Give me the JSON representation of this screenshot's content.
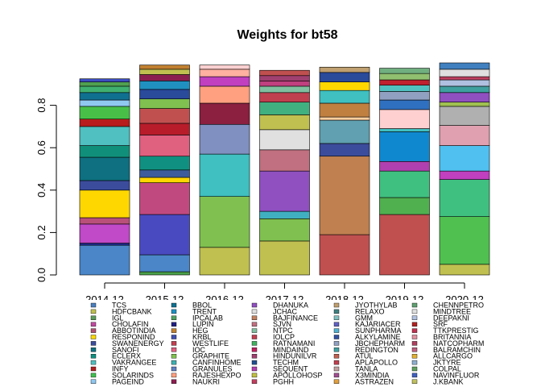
{
  "chart_data": {
    "type": "bar",
    "stacked": true,
    "title": "Weights for bt58",
    "categories": [
      "2014-12",
      "2015-12",
      "2016-12",
      "2017-12",
      "2018-12",
      "2019-12",
      "2020-12"
    ],
    "ylim": [
      0,
      1
    ],
    "yticks": [
      "0.0",
      "0.2",
      "0.4",
      "0.6",
      "0.8"
    ],
    "grid": false,
    "legend_position": "bottom",
    "legend": [
      {
        "name": "TCS",
        "color": "#4a7fbf"
      },
      {
        "name": "HDFCBANK",
        "color": "#c0c050"
      },
      {
        "name": "IGL",
        "color": "#5a9a5a"
      },
      {
        "name": "CHOLAFIN",
        "color": "#c04aa0"
      },
      {
        "name": "ABBOTINDIA",
        "color": "#b05070"
      },
      {
        "name": "RESPONIND",
        "color": "#ffd700"
      },
      {
        "name": "SWANENERGY",
        "color": "#3c4c9c"
      },
      {
        "name": "SANOFI",
        "color": "#107080"
      },
      {
        "name": "ECLERX",
        "color": "#109080"
      },
      {
        "name": "VAKRANGEE",
        "color": "#50c0c0"
      },
      {
        "name": "INFY",
        "color": "#b02020"
      },
      {
        "name": "SOLARINDS",
        "color": "#40c050"
      },
      {
        "name": "PAGEIND",
        "color": "#90c8f0"
      },
      {
        "name": "BBOL",
        "color": "#107090"
      },
      {
        "name": "TRENT",
        "color": "#2090c0"
      },
      {
        "name": "IPCALAB",
        "color": "#50a060"
      },
      {
        "name": "LUPIN",
        "color": "#202080"
      },
      {
        "name": "HEG",
        "color": "#c08030"
      },
      {
        "name": "KRBL",
        "color": "#4050b0"
      },
      {
        "name": "WESTLIFE",
        "color": "#c04050"
      },
      {
        "name": "IOC",
        "color": "#e06080"
      },
      {
        "name": "GRAPHITE",
        "color": "#80c050"
      },
      {
        "name": "CANFINHOME",
        "color": "#40b0b0"
      },
      {
        "name": "GRANULES",
        "color": "#6080c0"
      },
      {
        "name": "RAJESHEXPO",
        "color": "#ffa080"
      },
      {
        "name": "NAUKRI",
        "color": "#8b2050"
      },
      {
        "name": "DHANUKA",
        "color": "#9050c0"
      },
      {
        "name": "JCHAC",
        "color": "#e0e0e0"
      },
      {
        "name": "BAJFINANCE",
        "color": "#c08060"
      },
      {
        "name": "SJVN",
        "color": "#c07080"
      },
      {
        "name": "NTPC",
        "color": "#80c0a0"
      },
      {
        "name": "IOLCP",
        "color": "#c04050"
      },
      {
        "name": "RATNAMANI",
        "color": "#40b060"
      },
      {
        "name": "MINDAIND",
        "color": "#c02060"
      },
      {
        "name": "HINDUNILVR",
        "color": "#a04070"
      },
      {
        "name": "TECHM",
        "color": "#205090"
      },
      {
        "name": "SEQUENT",
        "color": "#b040b0"
      },
      {
        "name": "APOLLOHOSP",
        "color": "#c0c040"
      },
      {
        "name": "PGHH",
        "color": "#c04060"
      },
      {
        "name": "JYOTHYLAB",
        "color": "#c0a070"
      },
      {
        "name": "RELAXO",
        "color": "#408080"
      },
      {
        "name": "GMM",
        "color": "#80c0c0"
      },
      {
        "name": "KAJARIACER",
        "color": "#6060c0"
      },
      {
        "name": "SUNPHARMA",
        "color": "#50b0d0"
      },
      {
        "name": "ALKYLAMINE",
        "color": "#3050a0"
      },
      {
        "name": "JBCHEPHARM",
        "color": "#90a0c0"
      },
      {
        "name": "REDINGTON",
        "color": "#40a0a0"
      },
      {
        "name": "ATUL",
        "color": "#c06050"
      },
      {
        "name": "APLAPOLLO",
        "color": "#c04050"
      },
      {
        "name": "TANLA",
        "color": "#c0a0a0"
      },
      {
        "name": "X3MINDIA",
        "color": "#a05090"
      },
      {
        "name": "ASTRAZEN",
        "color": "#e0a040"
      },
      {
        "name": "CHENNPETRO",
        "color": "#60a070"
      },
      {
        "name": "MINDTREE",
        "color": "#e0e0e0"
      },
      {
        "name": "DEEPAKNI",
        "color": "#b0c0e0"
      },
      {
        "name": "SRF",
        "color": "#b02020"
      },
      {
        "name": "TTKPRESTIG",
        "color": "#c03050"
      },
      {
        "name": "BRITANNIA",
        "color": "#e090a0"
      },
      {
        "name": "NATCOPHARM",
        "color": "#b04060"
      },
      {
        "name": "BALRAMCHIN",
        "color": "#c06080"
      },
      {
        "name": "ALLCARGO",
        "color": "#e0b030"
      },
      {
        "name": "JKTYRE",
        "color": "#90b0d0"
      },
      {
        "name": "COLPAL",
        "color": "#60a060"
      },
      {
        "name": "NAVINFLUOR",
        "color": "#4060c0"
      },
      {
        "name": "J.KBANK",
        "color": "#c0c060"
      }
    ],
    "stacks": [
      {
        "category": "2014-12",
        "segments": [
          {
            "value": 0.14,
            "color": "#4a86c8"
          },
          {
            "value": 0.01,
            "color": "#1e2a8a"
          },
          {
            "value": 0.09,
            "color": "#c04ac8"
          },
          {
            "value": 0.03,
            "color": "#b8507a"
          },
          {
            "value": 0.13,
            "color": "#ffd700"
          },
          {
            "value": 0.045,
            "color": "#3c4c9c"
          },
          {
            "value": 0.11,
            "color": "#0e7080"
          },
          {
            "value": 0.055,
            "color": "#10907a"
          },
          {
            "value": 0.09,
            "color": "#50c0c0"
          },
          {
            "value": 0.035,
            "color": "#b81c1c"
          },
          {
            "value": 0.06,
            "color": "#48c048"
          },
          {
            "value": 0.03,
            "color": "#90c8f0"
          },
          {
            "value": 0.035,
            "color": "#107090"
          },
          {
            "value": 0.03,
            "color": "#40b070"
          },
          {
            "value": 0.02,
            "color": "#50a050"
          },
          {
            "value": 0.015,
            "color": "#3c4cc0"
          }
        ]
      },
      {
        "category": "2015-12",
        "segments": [
          {
            "value": 0.015,
            "color": "#4aa04a"
          },
          {
            "value": 0.08,
            "color": "#4a86c8"
          },
          {
            "value": 0.19,
            "color": "#4a4ac0"
          },
          {
            "value": 0.15,
            "color": "#c04a80"
          },
          {
            "value": 0.025,
            "color": "#ffd700"
          },
          {
            "value": 0.035,
            "color": "#3c5c9c"
          },
          {
            "value": 0.065,
            "color": "#109080"
          },
          {
            "value": 0.1,
            "color": "#e06080"
          },
          {
            "value": 0.055,
            "color": "#b81c2a"
          },
          {
            "value": 0.07,
            "color": "#c05050"
          },
          {
            "value": 0.045,
            "color": "#80c050"
          },
          {
            "value": 0.045,
            "color": "#2a4a9a"
          },
          {
            "value": 0.04,
            "color": "#2090c0"
          },
          {
            "value": 0.03,
            "color": "#8b2050"
          },
          {
            "value": 0.025,
            "color": "#c0c050"
          },
          {
            "value": 0.02,
            "color": "#c08030"
          }
        ]
      },
      {
        "category": "2016-12",
        "segments": [
          {
            "value": 0.13,
            "color": "#c0c050"
          },
          {
            "value": 0.24,
            "color": "#80c050"
          },
          {
            "value": 0.2,
            "color": "#40c0c0"
          },
          {
            "value": 0.14,
            "color": "#8090c0"
          },
          {
            "value": 0.1,
            "color": "#8b2040"
          },
          {
            "value": 0.08,
            "color": "#ffa080"
          },
          {
            "value": 0.045,
            "color": "#c040c0"
          },
          {
            "value": 0.035,
            "color": "#ffb0a0"
          },
          {
            "value": 0.02,
            "color": "#ffd0d0"
          }
        ]
      },
      {
        "category": "2017-12",
        "segments": [
          {
            "value": 0.16,
            "color": "#c0c050"
          },
          {
            "value": 0.105,
            "color": "#80c050"
          },
          {
            "value": 0.035,
            "color": "#40b0c0"
          },
          {
            "value": 0.19,
            "color": "#9050c0"
          },
          {
            "value": 0.1,
            "color": "#c07080"
          },
          {
            "value": 0.095,
            "color": "#e0e0e0"
          },
          {
            "value": 0.07,
            "color": "#c0c050"
          },
          {
            "value": 0.06,
            "color": "#40b080"
          },
          {
            "value": 0.045,
            "color": "#c04050"
          },
          {
            "value": 0.03,
            "color": "#80c0a0"
          },
          {
            "value": 0.025,
            "color": "#c04080"
          },
          {
            "value": 0.025,
            "color": "#a04070"
          },
          {
            "value": 0.025,
            "color": "#c05050"
          }
        ]
      },
      {
        "category": "2018-12",
        "segments": [
          {
            "value": 0.19,
            "color": "#c05050"
          },
          {
            "value": 0.37,
            "color": "#c08050"
          },
          {
            "value": 0.06,
            "color": "#3c4c9c"
          },
          {
            "value": 0.11,
            "color": "#60a0b0"
          },
          {
            "value": 0.015,
            "color": "#ffd0a0"
          },
          {
            "value": 0.065,
            "color": "#c08040"
          },
          {
            "value": 0.06,
            "color": "#40c0c0"
          },
          {
            "value": 0.04,
            "color": "#ffd700"
          },
          {
            "value": 0.045,
            "color": "#2a4a9a"
          },
          {
            "value": 0.025,
            "color": "#c0a070"
          }
        ]
      },
      {
        "category": "2019-12",
        "segments": [
          {
            "value": 0.285,
            "color": "#c05050"
          },
          {
            "value": 0.08,
            "color": "#50b050"
          },
          {
            "value": 0.125,
            "color": "#40c080"
          },
          {
            "value": 0.045,
            "color": "#b040b0"
          },
          {
            "value": 0.14,
            "color": "#1088d0"
          },
          {
            "value": 0.015,
            "color": "#40c0c0"
          },
          {
            "value": 0.09,
            "color": "#ffd0d0"
          },
          {
            "value": 0.045,
            "color": "#3070c0"
          },
          {
            "value": 0.04,
            "color": "#90a0c0"
          },
          {
            "value": 0.03,
            "color": "#50c0c0"
          },
          {
            "value": 0.025,
            "color": "#c02030"
          },
          {
            "value": 0.03,
            "color": "#90c070"
          },
          {
            "value": 0.025,
            "color": "#70b080"
          }
        ]
      },
      {
        "category": "2020-12",
        "segments": [
          {
            "value": 0.05,
            "color": "#c0c050"
          },
          {
            "value": 0.225,
            "color": "#50c050"
          },
          {
            "value": 0.175,
            "color": "#40c080"
          },
          {
            "value": 0.04,
            "color": "#c040c0"
          },
          {
            "value": 0.12,
            "color": "#50c0f0"
          },
          {
            "value": 0.095,
            "color": "#e0a0b0"
          },
          {
            "value": 0.09,
            "color": "#b0b0b0"
          },
          {
            "value": 0.02,
            "color": "#a0c050"
          },
          {
            "value": 0.045,
            "color": "#9050c0"
          },
          {
            "value": 0.03,
            "color": "#40a0a0"
          },
          {
            "value": 0.03,
            "color": "#b0c0e0"
          },
          {
            "value": 0.015,
            "color": "#c04060"
          },
          {
            "value": 0.035,
            "color": "#e0e0e0"
          },
          {
            "value": 0.03,
            "color": "#4080c0"
          }
        ]
      }
    ]
  }
}
